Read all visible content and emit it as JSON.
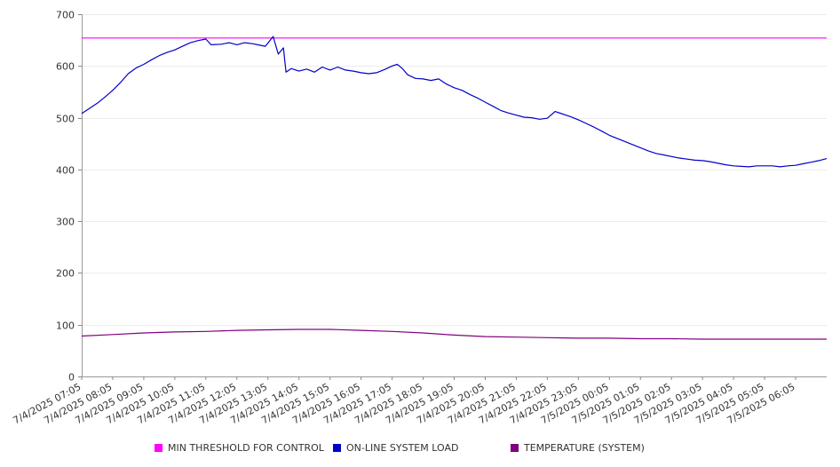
{
  "chart_data": {
    "type": "line",
    "title": "",
    "xlabel": "",
    "ylabel": "",
    "ylim": [
      0,
      700
    ],
    "yticks": [
      0,
      100,
      200,
      300,
      400,
      500,
      600,
      700
    ],
    "grid": true,
    "legend_position": "bottom",
    "x_tick_labels": [
      "7/4/2025 07:05",
      "7/4/2025 08:05",
      "7/4/2025 09:05",
      "7/4/2025 10:05",
      "7/4/2025 11:05",
      "7/4/2025 12:05",
      "7/4/2025 13:05",
      "7/4/2025 14:05",
      "7/4/2025 15:05",
      "7/4/2025 16:05",
      "7/4/2025 17:05",
      "7/4/2025 18:05",
      "7/4/2025 19:05",
      "7/4/2025 20:05",
      "7/4/2025 21:05",
      "7/4/2025 22:05",
      "7/4/2025 23:05",
      "7/5/2025 00:05",
      "7/5/2025 01:05",
      "7/5/2025 02:05",
      "7/5/2025 03:05",
      "7/5/2025 04:05",
      "7/5/2025 05:05",
      "7/5/2025 06:05"
    ],
    "x_range": [
      "7/4/2025 07:05",
      "7/5/2025 07:05"
    ],
    "series": [
      {
        "name": "MIN THRESHOLD FOR CONTROL",
        "color": "#ff00ff",
        "points": [
          [
            "7/4/2025 07:05",
            654
          ],
          [
            "7/5/2025 07:05",
            654
          ]
        ]
      },
      {
        "name": "ON-LINE SYSTEM LOAD",
        "color": "#0000cc",
        "points": [
          [
            "7/4/2025 07:05",
            508
          ],
          [
            "7/4/2025 07:20",
            518
          ],
          [
            "7/4/2025 07:35",
            528
          ],
          [
            "7/4/2025 07:50",
            540
          ],
          [
            "7/4/2025 08:05",
            553
          ],
          [
            "7/4/2025 08:20",
            568
          ],
          [
            "7/4/2025 08:35",
            585
          ],
          [
            "7/4/2025 08:50",
            596
          ],
          [
            "7/4/2025 09:05",
            603
          ],
          [
            "7/4/2025 09:20",
            612
          ],
          [
            "7/4/2025 09:35",
            620
          ],
          [
            "7/4/2025 09:50",
            626
          ],
          [
            "7/4/2025 10:05",
            631
          ],
          [
            "7/4/2025 10:20",
            638
          ],
          [
            "7/4/2025 10:35",
            645
          ],
          [
            "7/4/2025 10:50",
            649
          ],
          [
            "7/4/2025 11:05",
            652
          ],
          [
            "7/4/2025 11:15",
            641
          ],
          [
            "7/4/2025 11:35",
            642
          ],
          [
            "7/4/2025 11:50",
            645
          ],
          [
            "7/4/2025 12:05",
            641
          ],
          [
            "7/4/2025 12:20",
            645
          ],
          [
            "7/4/2025 12:35",
            643
          ],
          [
            "7/4/2025 12:50",
            640
          ],
          [
            "7/4/2025 13:00",
            638
          ],
          [
            "7/4/2025 13:15",
            657
          ],
          [
            "7/4/2025 13:25",
            623
          ],
          [
            "7/4/2025 13:35",
            635
          ],
          [
            "7/4/2025 13:40",
            588
          ],
          [
            "7/4/2025 13:50",
            595
          ],
          [
            "7/4/2025 14:05",
            590
          ],
          [
            "7/4/2025 14:20",
            594
          ],
          [
            "7/4/2025 14:35",
            588
          ],
          [
            "7/4/2025 14:50",
            598
          ],
          [
            "7/4/2025 15:05",
            592
          ],
          [
            "7/4/2025 15:20",
            598
          ],
          [
            "7/4/2025 15:35",
            592
          ],
          [
            "7/4/2025 15:50",
            590
          ],
          [
            "7/4/2025 16:05",
            587
          ],
          [
            "7/4/2025 16:20",
            585
          ],
          [
            "7/4/2025 16:35",
            587
          ],
          [
            "7/4/2025 16:50",
            593
          ],
          [
            "7/4/2025 17:05",
            600
          ],
          [
            "7/4/2025 17:15",
            603
          ],
          [
            "7/4/2025 17:25",
            595
          ],
          [
            "7/4/2025 17:35",
            583
          ],
          [
            "7/4/2025 17:50",
            576
          ],
          [
            "7/4/2025 18:05",
            575
          ],
          [
            "7/4/2025 18:20",
            572
          ],
          [
            "7/4/2025 18:35",
            575
          ],
          [
            "7/4/2025 18:50",
            565
          ],
          [
            "7/4/2025 19:05",
            558
          ],
          [
            "7/4/2025 19:20",
            553
          ],
          [
            "7/4/2025 19:35",
            545
          ],
          [
            "7/4/2025 19:50",
            538
          ],
          [
            "7/4/2025 20:05",
            530
          ],
          [
            "7/4/2025 20:20",
            522
          ],
          [
            "7/4/2025 20:35",
            514
          ],
          [
            "7/4/2025 20:50",
            509
          ],
          [
            "7/4/2025 21:05",
            505
          ],
          [
            "7/4/2025 21:20",
            501
          ],
          [
            "7/4/2025 21:35",
            500
          ],
          [
            "7/4/2025 21:50",
            497
          ],
          [
            "7/4/2025 22:05",
            499
          ],
          [
            "7/4/2025 22:20",
            512
          ],
          [
            "7/4/2025 22:35",
            507
          ],
          [
            "7/4/2025 22:50",
            502
          ],
          [
            "7/4/2025 23:05",
            496
          ],
          [
            "7/4/2025 23:20",
            489
          ],
          [
            "7/4/2025 23:35",
            482
          ],
          [
            "7/4/2025 23:50",
            474
          ],
          [
            "7/5/2025 00:05",
            466
          ],
          [
            "7/5/2025 00:20",
            460
          ],
          [
            "7/5/2025 00:35",
            454
          ],
          [
            "7/5/2025 00:50",
            448
          ],
          [
            "7/5/2025 01:05",
            442
          ],
          [
            "7/5/2025 01:20",
            436
          ],
          [
            "7/5/2025 01:35",
            431
          ],
          [
            "7/5/2025 01:50",
            428
          ],
          [
            "7/5/2025 02:05",
            425
          ],
          [
            "7/5/2025 02:20",
            422
          ],
          [
            "7/5/2025 02:35",
            420
          ],
          [
            "7/5/2025 02:50",
            418
          ],
          [
            "7/5/2025 03:05",
            417
          ],
          [
            "7/5/2025 03:20",
            415
          ],
          [
            "7/5/2025 03:35",
            412
          ],
          [
            "7/5/2025 03:50",
            409
          ],
          [
            "7/5/2025 04:05",
            407
          ],
          [
            "7/5/2025 04:20",
            406
          ],
          [
            "7/5/2025 04:35",
            405
          ],
          [
            "7/5/2025 04:50",
            407
          ],
          [
            "7/5/2025 05:05",
            407
          ],
          [
            "7/5/2025 05:20",
            407
          ],
          [
            "7/5/2025 05:35",
            405
          ],
          [
            "7/5/2025 05:50",
            407
          ],
          [
            "7/5/2025 06:05",
            408
          ],
          [
            "7/5/2025 06:20",
            411
          ],
          [
            "7/5/2025 06:35",
            414
          ],
          [
            "7/5/2025 06:50",
            417
          ],
          [
            "7/5/2025 07:05",
            421
          ]
        ]
      },
      {
        "name": "TEMPERATURE (SYSTEM)",
        "color": "#800080",
        "points": [
          [
            "7/4/2025 07:05",
            78
          ],
          [
            "7/4/2025 08:05",
            81
          ],
          [
            "7/4/2025 09:05",
            84
          ],
          [
            "7/4/2025 10:05",
            86
          ],
          [
            "7/4/2025 11:05",
            87
          ],
          [
            "7/4/2025 12:05",
            89
          ],
          [
            "7/4/2025 13:05",
            90
          ],
          [
            "7/4/2025 14:05",
            91
          ],
          [
            "7/4/2025 15:05",
            91
          ],
          [
            "7/4/2025 16:05",
            89
          ],
          [
            "7/4/2025 17:05",
            87
          ],
          [
            "7/4/2025 18:05",
            84
          ],
          [
            "7/4/2025 19:05",
            80
          ],
          [
            "7/4/2025 20:05",
            77
          ],
          [
            "7/4/2025 21:05",
            76
          ],
          [
            "7/4/2025 22:05",
            75
          ],
          [
            "7/4/2025 23:05",
            74
          ],
          [
            "7/5/2025 00:05",
            74
          ],
          [
            "7/5/2025 01:05",
            73
          ],
          [
            "7/5/2025 02:05",
            73
          ],
          [
            "7/5/2025 03:05",
            72
          ],
          [
            "7/5/2025 04:05",
            72
          ],
          [
            "7/5/2025 05:05",
            72
          ],
          [
            "7/5/2025 06:05",
            72
          ],
          [
            "7/5/2025 07:05",
            72
          ]
        ]
      }
    ]
  }
}
